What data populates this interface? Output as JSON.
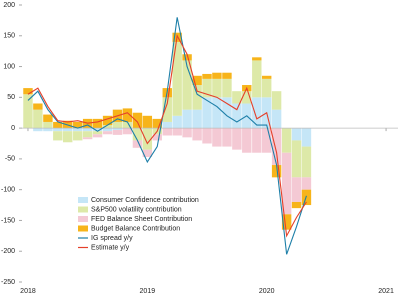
{
  "chart_data": {
    "type": "bar",
    "stacked": true,
    "legend": "lower left",
    "x": [
      2018,
      2018.083,
      2018.167,
      2018.25,
      2018.333,
      2018.417,
      2018.5,
      2018.583,
      2018.667,
      2018.75,
      2018.833,
      2018.917,
      2019,
      2019.083,
      2019.167,
      2019.25,
      2019.333,
      2019.417,
      2019.5,
      2019.583,
      2019.667,
      2019.75,
      2019.833,
      2019.917,
      2020,
      2020.083,
      2020.167,
      2020.25,
      2020.333
    ],
    "xlim": [
      2017.95,
      2021.1
    ],
    "xticks": [
      2018,
      2019,
      2020,
      2021
    ],
    "ylim": [
      -250,
      200
    ],
    "yticks": [
      -250,
      -200,
      -150,
      -100,
      -50,
      0,
      50,
      100,
      150,
      200
    ],
    "series": [
      {
        "name": "Consumer Confidence contribution",
        "type": "bar",
        "color": "#c5e6f7",
        "values": [
          0,
          -5,
          -5,
          -5,
          -5,
          -5,
          -5,
          -5,
          -5,
          -3,
          0,
          0,
          0,
          0,
          10,
          20,
          30,
          30,
          50,
          50,
          50,
          40,
          40,
          50,
          50,
          30,
          0,
          -20,
          -30
        ]
      },
      {
        "name": "S&P500 volatility contribution",
        "type": "bar",
        "color": "#dde9a8",
        "values": [
          55,
          30,
          10,
          -15,
          -18,
          -15,
          -10,
          -5,
          5,
          10,
          10,
          -20,
          -35,
          -10,
          40,
          120,
          80,
          40,
          30,
          30,
          30,
          20,
          20,
          60,
          30,
          30,
          -40,
          -60,
          -50
        ]
      },
      {
        "name": "FED Balance Sheet Contribution",
        "type": "bar",
        "color": "#f4c9d4",
        "values": [
          0,
          0,
          0,
          0,
          0,
          0,
          -3,
          -5,
          -5,
          -8,
          -10,
          -12,
          -12,
          -10,
          -12,
          -12,
          -15,
          -20,
          -25,
          -30,
          -30,
          -35,
          -40,
          -40,
          -40,
          -60,
          -100,
          -40,
          -20
        ]
      },
      {
        "name": "Budget Balance Contribution",
        "type": "bar",
        "color": "#f7b41a",
        "values": [
          10,
          10,
          12,
          10,
          12,
          10,
          15,
          15,
          15,
          20,
          22,
          25,
          20,
          15,
          15,
          15,
          10,
          15,
          8,
          10,
          10,
          0,
          10,
          5,
          5,
          -20,
          -25,
          -10,
          -25
        ]
      },
      {
        "name": "IG spread y/y",
        "type": "line",
        "color": "#1d7fa8",
        "values": [
          45,
          60,
          30,
          10,
          5,
          0,
          5,
          -5,
          5,
          15,
          10,
          -20,
          -55,
          -30,
          60,
          180,
          100,
          55,
          45,
          35,
          20,
          10,
          20,
          5,
          5,
          -60,
          -205,
          -160,
          -110
        ]
      },
      {
        "name": "Estimate y/y",
        "type": "line",
        "color": "#e5402a",
        "values": [
          55,
          65,
          35,
          12,
          10,
          12,
          8,
          10,
          15,
          20,
          25,
          10,
          -25,
          -5,
          40,
          150,
          120,
          60,
          55,
          50,
          40,
          30,
          65,
          15,
          25,
          -40,
          -175,
          -145,
          -120
        ]
      }
    ]
  }
}
